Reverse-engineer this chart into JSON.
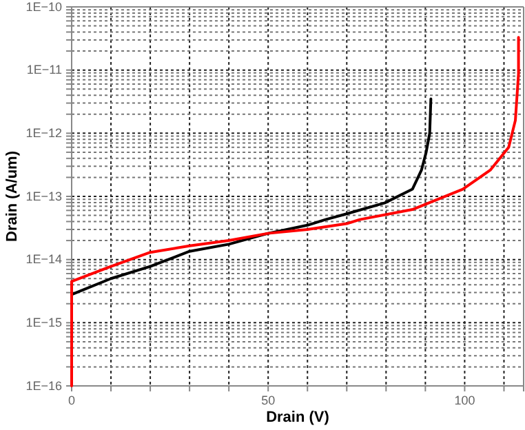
{
  "chart_data": {
    "type": "line",
    "xlabel": "Drain (V)",
    "ylabel": "Drain (A/um)",
    "log": "y",
    "grid": true,
    "line_style": "solid",
    "marker": "none",
    "xlim": [
      0,
      115
    ],
    "ylim": [
      1e-16,
      1e-10
    ],
    "xticks": [
      0,
      {
        "value": 10,
        "label": null
      },
      {
        "value": 20,
        "label": null
      },
      {
        "value": 30,
        "label": null
      },
      {
        "value": 40,
        "label": null
      },
      50,
      {
        "value": 60,
        "label": null
      },
      {
        "value": 70,
        "label": null
      },
      {
        "value": 80,
        "label": null
      },
      {
        "value": 90,
        "label": null
      },
      100,
      {
        "value": 110,
        "label": null
      }
    ],
    "yticks": [
      {
        "value": 1e-16,
        "label": "1E−16"
      },
      {
        "value": 2e-16,
        "label": null
      },
      {
        "value": 3e-16,
        "label": null
      },
      {
        "value": 4e-16,
        "label": null
      },
      {
        "value": 5e-16,
        "label": null
      },
      {
        "value": 6e-16,
        "label": null
      },
      {
        "value": 7e-16,
        "label": null
      },
      {
        "value": 8e-16,
        "label": null
      },
      {
        "value": 9e-16,
        "label": null
      },
      {
        "value": 1e-15,
        "label": "1E−15"
      },
      {
        "value": 2e-15,
        "label": null
      },
      {
        "value": 3e-15,
        "label": null
      },
      {
        "value": 4e-15,
        "label": null
      },
      {
        "value": 5e-15,
        "label": null
      },
      {
        "value": 6e-15,
        "label": null
      },
      {
        "value": 7e-15,
        "label": null
      },
      {
        "value": 8e-15,
        "label": null
      },
      {
        "value": 9e-15,
        "label": null
      },
      {
        "value": 1e-14,
        "label": "1E−14"
      },
      {
        "value": 2e-14,
        "label": null
      },
      {
        "value": 3e-14,
        "label": null
      },
      {
        "value": 4e-14,
        "label": null
      },
      {
        "value": 5e-14,
        "label": null
      },
      {
        "value": 6e-14,
        "label": null
      },
      {
        "value": 7e-14,
        "label": null
      },
      {
        "value": 8e-14,
        "label": null
      },
      {
        "value": 9e-14,
        "label": null
      },
      {
        "value": 1e-13,
        "label": "1E−13"
      },
      {
        "value": 2e-13,
        "label": null
      },
      {
        "value": 3e-13,
        "label": null
      },
      {
        "value": 4e-13,
        "label": null
      },
      {
        "value": 5e-13,
        "label": null
      },
      {
        "value": 6e-13,
        "label": null
      },
      {
        "value": 7e-13,
        "label": null
      },
      {
        "value": 8e-13,
        "label": null
      },
      {
        "value": 9e-13,
        "label": null
      },
      {
        "value": 1e-12,
        "label": "1E−12"
      },
      {
        "value": 2e-12,
        "label": null
      },
      {
        "value": 3e-12,
        "label": null
      },
      {
        "value": 4e-12,
        "label": null
      },
      {
        "value": 5e-12,
        "label": null
      },
      {
        "value": 6e-12,
        "label": null
      },
      {
        "value": 7e-12,
        "label": null
      },
      {
        "value": 8e-12,
        "label": null
      },
      {
        "value": 9e-12,
        "label": null
      },
      {
        "value": 1e-11,
        "label": "1E−11"
      },
      {
        "value": 2e-11,
        "label": null
      },
      {
        "value": 3e-11,
        "label": null
      },
      {
        "value": 4e-11,
        "label": null
      },
      {
        "value": 5e-11,
        "label": null
      },
      {
        "value": 6e-11,
        "label": null
      },
      {
        "value": 7e-11,
        "label": null
      },
      {
        "value": 8e-11,
        "label": null
      },
      {
        "value": 9e-11,
        "label": null
      },
      {
        "value": 1e-10,
        "label": "1E−10"
      }
    ],
    "series": [
      {
        "color": "#000000",
        "x": [
          0,
          10,
          20,
          30,
          40,
          50,
          60,
          64.6,
          70,
          79.7,
          86.7,
          89,
          90.2,
          91.1,
          91.4
        ],
        "values": [
          2.8e-15,
          5e-15,
          7.8e-15,
          1.35e-14,
          1.75e-14,
          2.6e-14,
          3.5e-14,
          4.3e-14,
          5.3e-14,
          7.9e-14,
          1.3e-13,
          2.6e-13,
          5e-13,
          1e-12,
          3.5e-12
        ]
      },
      {
        "color": "#ff0000",
        "x": [
          0,
          0,
          10,
          20,
          30,
          40,
          50,
          60,
          70,
          73.3,
          86.7,
          99.5,
          106.5,
          111.2,
          112.9,
          113.7,
          113.7
        ],
        "values": [
          1e-16,
          4.5e-15,
          7.8e-15,
          1.3e-14,
          1.65e-14,
          2e-14,
          2.6e-14,
          3e-14,
          3.7e-14,
          4.3e-14,
          6.2e-14,
          1.3e-13,
          2.6e-13,
          6e-13,
          1.6e-12,
          8.7e-12,
          3.3e-11
        ]
      }
    ]
  }
}
